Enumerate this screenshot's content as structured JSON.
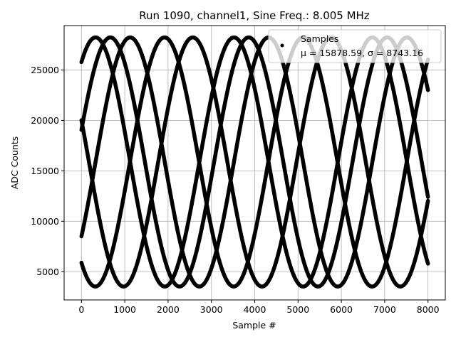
{
  "chart_data": {
    "type": "scatter",
    "title": "Run 1090, channel1, Sine Freq.: 8.005 MHz",
    "xlabel": "Sample #",
    "ylabel": "ADC Counts",
    "xlim": [
      -400,
      8400
    ],
    "ylim": [
      2200,
      29400
    ],
    "xticks": [
      0,
      1000,
      2000,
      3000,
      4000,
      5000,
      6000,
      7000,
      8000
    ],
    "yticks": [
      5000,
      10000,
      15000,
      20000,
      25000
    ],
    "xtick_labels": [
      "0",
      "1000",
      "2000",
      "3000",
      "4000",
      "5000",
      "6000",
      "7000",
      "8000"
    ],
    "ytick_labels": [
      "5000",
      "10000",
      "15000",
      "20000",
      "25000"
    ],
    "grid": true,
    "legend_position": "top-right",
    "sine": {
      "mean": 15878.59,
      "amplitude": 12350,
      "period_samples": 3195,
      "phases_at_zero": [
        0.93,
        0.26,
        -0.64,
        2.8,
        -2.2
      ]
    },
    "x_range": [
      0,
      8000
    ],
    "series": [
      {
        "name": "Samples",
        "annotation": "μ = 15878.59, σ = 8743.16",
        "color": "#000000",
        "marker": "point"
      }
    ]
  }
}
